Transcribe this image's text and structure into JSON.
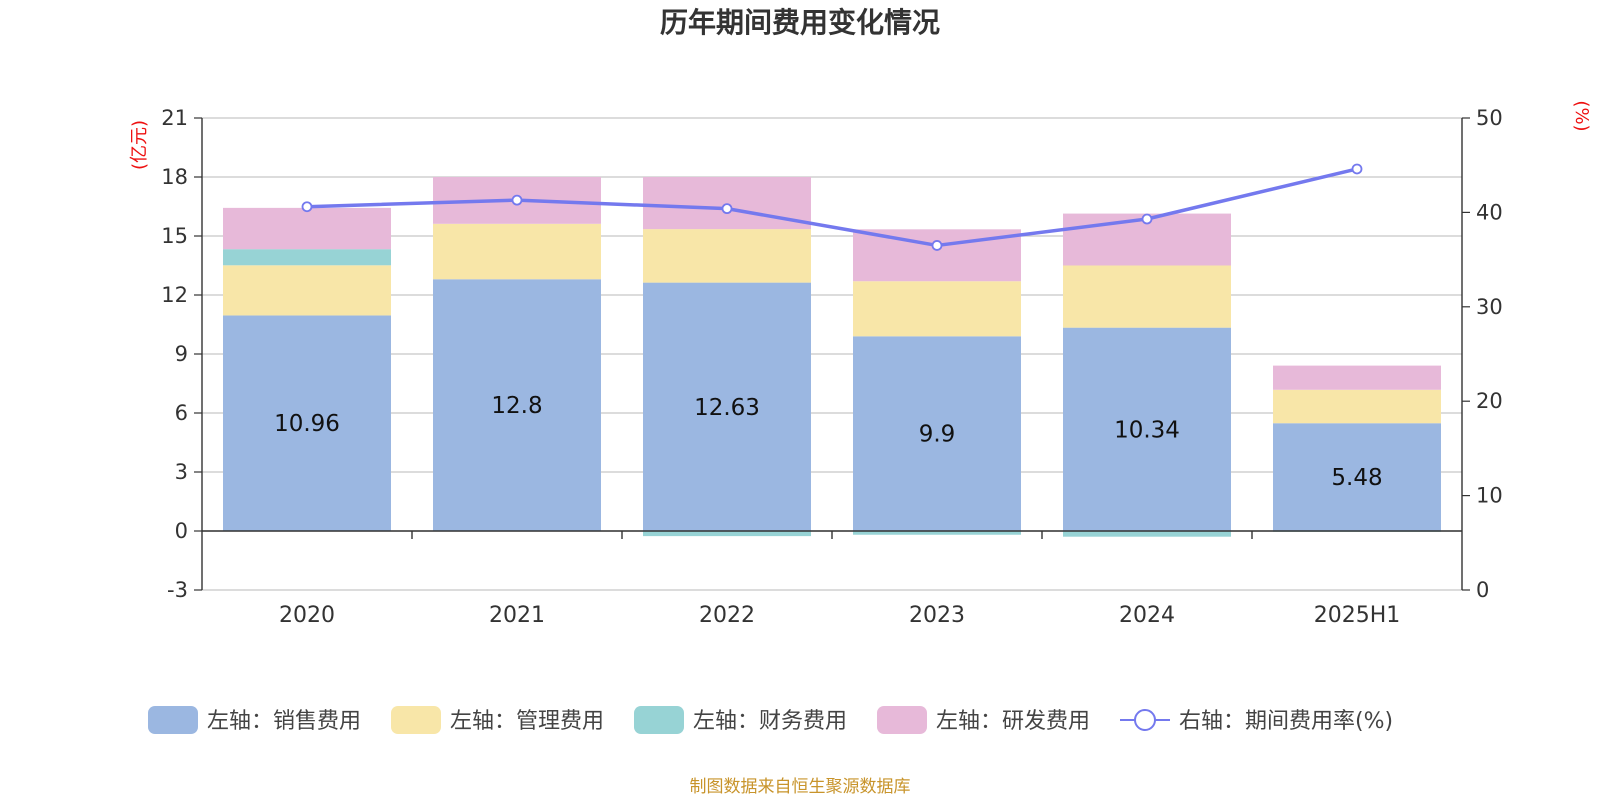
{
  "chart_data": {
    "type": "bar",
    "title": "历年期间费用变化情况",
    "categories": [
      "2020",
      "2021",
      "2022",
      "2023",
      "2024",
      "2025H1"
    ],
    "left_axis": {
      "unit": "(亿元)",
      "ylim": [
        -3,
        21
      ],
      "ticks": [
        -3,
        0,
        3,
        6,
        9,
        12,
        15,
        18,
        21
      ]
    },
    "right_axis": {
      "unit": "(%)",
      "ylim": [
        0,
        50
      ],
      "ticks": [
        0,
        10,
        20,
        30,
        40,
        50
      ]
    },
    "series": [
      {
        "name": "左轴：销售费用",
        "type": "bar",
        "axis": "left",
        "color": "#9bb7e1",
        "values": [
          10.96,
          12.8,
          12.63,
          9.9,
          10.34,
          5.48
        ],
        "show_labels": true
      },
      {
        "name": "左轴：管理费用",
        "type": "bar",
        "axis": "left",
        "color": "#f8e6a8",
        "values": [
          2.55,
          2.82,
          2.72,
          2.8,
          3.16,
          1.7
        ],
        "show_labels": false
      },
      {
        "name": "左轴：财务费用",
        "type": "bar",
        "axis": "left",
        "color": "#97d3d5",
        "values": [
          0.82,
          -0.02,
          -0.26,
          -0.19,
          -0.29,
          -0.04
        ],
        "show_labels": false
      },
      {
        "name": "左轴：研发费用",
        "type": "bar",
        "axis": "left",
        "color": "#e7b9d9",
        "values": [
          2.1,
          2.38,
          2.65,
          2.64,
          2.64,
          1.23
        ],
        "show_labels": false
      },
      {
        "name": "右轴：期间费用率(%)",
        "type": "line",
        "axis": "right",
        "color": "#7479ee",
        "values": [
          40.6,
          41.3,
          40.4,
          36.5,
          39.3,
          44.6
        ]
      }
    ],
    "grid": true,
    "legend_position": "bottom"
  },
  "source": "制图数据来自恒生聚源数据库"
}
